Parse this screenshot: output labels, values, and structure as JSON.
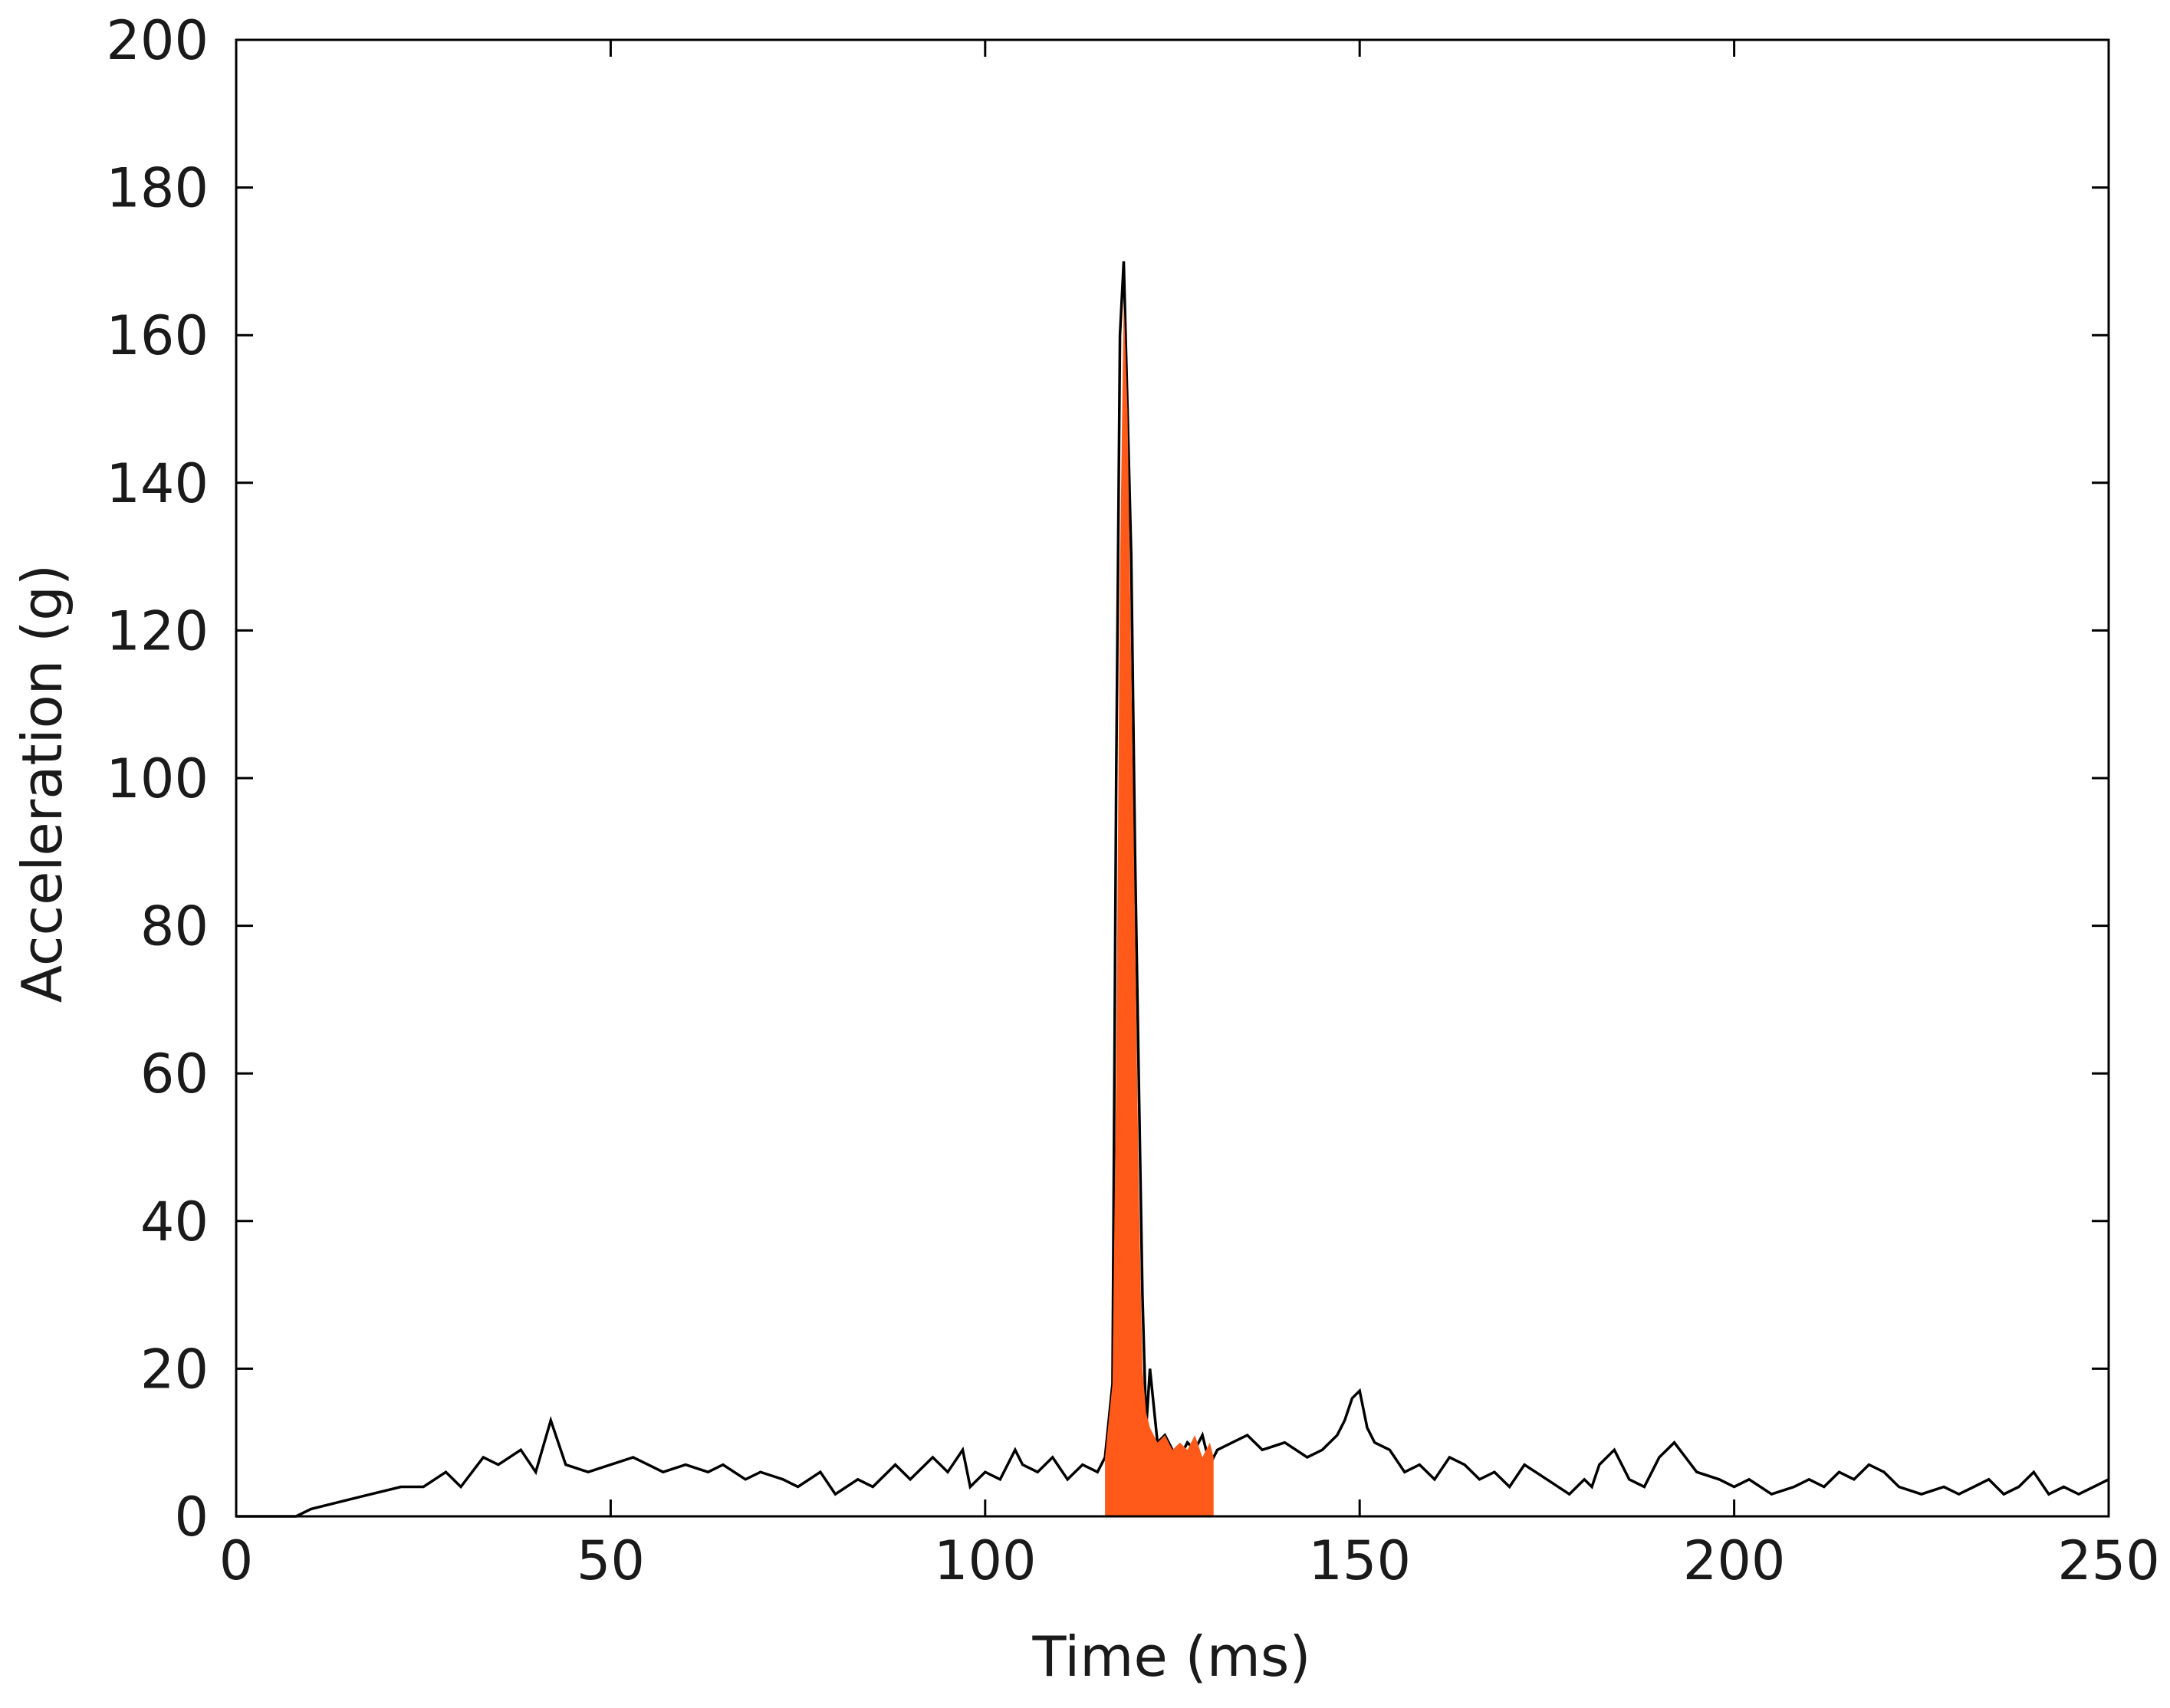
{
  "chart_data": {
    "type": "line",
    "title": "",
    "xlabel": "Time (ms)",
    "ylabel": "Acceleration (g)",
    "xlim": [
      0,
      250
    ],
    "ylim": [
      0,
      200
    ],
    "xticks": [
      0,
      50,
      100,
      150,
      200,
      250
    ],
    "yticks": [
      0,
      20,
      40,
      60,
      80,
      100,
      120,
      140,
      160,
      180,
      200
    ],
    "grid": false,
    "legend": "none",
    "colors": {
      "signal": "#000000",
      "highlight": "#ff5a1a"
    },
    "series": [
      {
        "style": "black signal trace",
        "x": [
          0,
          8,
          10,
          14,
          18,
          22,
          25,
          28,
          30,
          33,
          35,
          38,
          40,
          42,
          44,
          47,
          50,
          53,
          55,
          57,
          60,
          63,
          65,
          68,
          70,
          73,
          75,
          78,
          80,
          83,
          85,
          88,
          90,
          93,
          95,
          97,
          98,
          100,
          102,
          104,
          105,
          107,
          109,
          111,
          113,
          115,
          116,
          117,
          117.5,
          118,
          118.5,
          119,
          119.5,
          120,
          120.5,
          121,
          121.5,
          122,
          123,
          124,
          125,
          126,
          127,
          128,
          129,
          130,
          131,
          133,
          135,
          137,
          140,
          143,
          145,
          147,
          148,
          149,
          150,
          151,
          152,
          154,
          156,
          158,
          160,
          162,
          164,
          166,
          168,
          170,
          172,
          175,
          178,
          180,
          181,
          182,
          184,
          186,
          188,
          189,
          190,
          192,
          195,
          198,
          200,
          202,
          205,
          208,
          210,
          212,
          214,
          216,
          218,
          220,
          222,
          225,
          228,
          230,
          232,
          234,
          236,
          238,
          240,
          242,
          244,
          246,
          248,
          250
        ],
        "values": [
          0,
          0,
          1,
          2,
          3,
          4,
          4,
          6,
          4,
          8,
          7,
          9,
          6,
          13,
          7,
          6,
          7,
          8,
          7,
          6,
          7,
          6,
          7,
          5,
          6,
          5,
          4,
          6,
          3,
          5,
          4,
          7,
          5,
          8,
          6,
          9,
          4,
          6,
          5,
          9,
          7,
          6,
          8,
          5,
          7,
          6,
          8,
          18,
          100,
          160,
          170,
          150,
          130,
          90,
          60,
          30,
          12,
          20,
          10,
          11,
          9,
          8,
          10,
          9,
          11,
          7,
          9,
          10,
          11,
          9,
          10,
          8,
          9,
          11,
          13,
          16,
          17,
          12,
          10,
          9,
          6,
          7,
          5,
          8,
          7,
          5,
          6,
          4,
          7,
          5,
          3,
          5,
          4,
          7,
          9,
          5,
          4,
          6,
          8,
          10,
          6,
          5,
          4,
          5,
          3,
          4,
          5,
          4,
          6,
          5,
          7,
          6,
          4,
          3,
          4,
          3,
          4,
          5,
          3,
          4,
          6,
          3,
          4,
          3,
          4,
          5
        ]
      },
      {
        "style": "orange filled region",
        "x": [
          116,
          117,
          117.5,
          118,
          118.5,
          119,
          119.5,
          120,
          120.5,
          121,
          121.5,
          122,
          123,
          124,
          125,
          126,
          127,
          128,
          129,
          130,
          130.5
        ],
        "values": [
          8,
          18,
          60,
          128,
          165,
          150,
          115,
          80,
          45,
          20,
          14,
          12,
          10,
          11,
          9,
          10,
          9,
          11,
          8,
          10,
          8
        ]
      }
    ]
  }
}
